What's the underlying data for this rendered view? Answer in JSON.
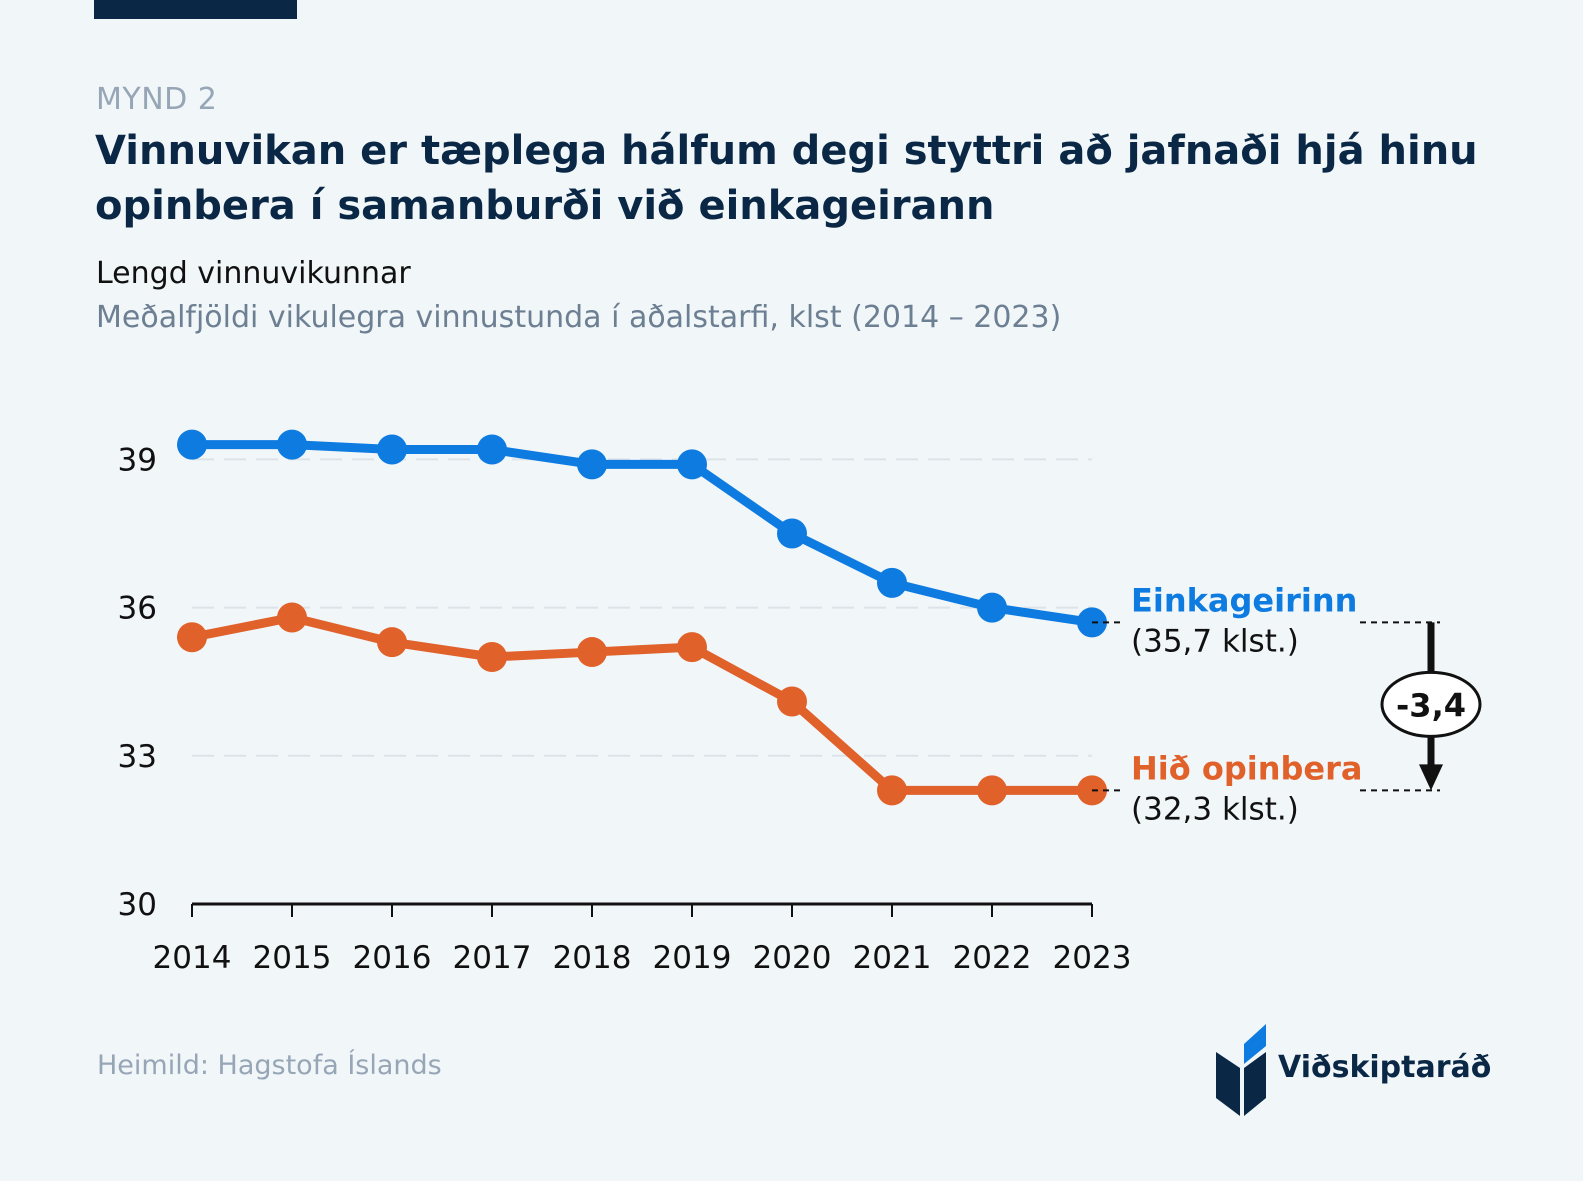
{
  "header": {
    "kicker": "MYND 2",
    "title": "Vinnuvikan er tæplega hálfum degi styttri að jafnaði hjá hinu opinbera í samanburði við einkageirann",
    "subtitle": "Lengd vinnuvikunnar",
    "subtitle2": "Meðalfjöldi vikulegra vinnustunda í aðalstarfi, klst (2014 – 2023)"
  },
  "footer": {
    "source": "Heimild: Hagstofa Íslands",
    "logo_text": "Viðskiptaráð"
  },
  "colors": {
    "private": "#0e7be0",
    "public": "#e0612a",
    "title": "#0a2846"
  },
  "chart_data": {
    "type": "line",
    "title": "Lengd vinnuvikunnar",
    "xlabel": "",
    "ylabel": "",
    "x": [
      "2014",
      "2015",
      "2016",
      "2017",
      "2018",
      "2019",
      "2020",
      "2021",
      "2022",
      "2023"
    ],
    "ylim": [
      30,
      40
    ],
    "yticks": [
      "30",
      "33",
      "36",
      "39"
    ],
    "ytick_values": [
      30,
      33,
      36,
      39
    ],
    "grid": true,
    "series": [
      {
        "name": "Einkageirinn",
        "end_label": "(35,7 klst.)",
        "color": "#0e7be0",
        "values": [
          39.3,
          39.3,
          39.2,
          39.2,
          38.9,
          38.9,
          37.5,
          36.5,
          36.0,
          35.7
        ]
      },
      {
        "name": "Hið opinbera",
        "end_label": "(32,3 klst.)",
        "color": "#e0612a",
        "values": [
          35.4,
          35.8,
          35.3,
          35.0,
          35.1,
          35.2,
          34.1,
          32.3,
          32.3,
          32.3
        ]
      }
    ],
    "annotation": {
      "text": "-3,4",
      "from_value": 35.7,
      "to_value": 32.3
    }
  }
}
